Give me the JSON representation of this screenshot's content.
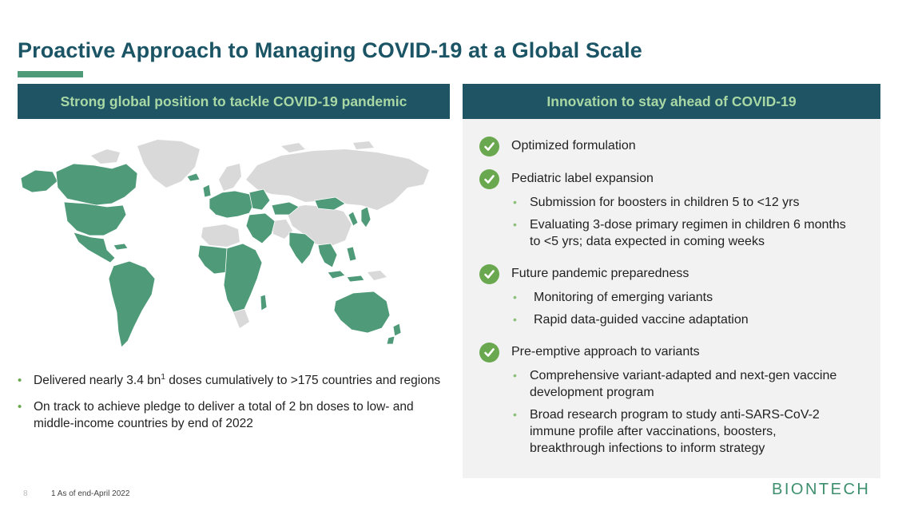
{
  "title": "Proactive Approach to Managing COVID-19 at a Global Scale",
  "left_header": "Strong global position to tackle COVID-19 pandemic",
  "right_header": "Innovation to stay ahead of COVID-19",
  "left_bullets": [
    {
      "pre": "Delivered nearly 3.4 bn",
      "sup": "1",
      "post": " doses cumulatively to >175 countries and regions"
    },
    {
      "text": "On track to achieve pledge to deliver a total of 2 bn doses to low- and middle-income countries by end of 2022"
    }
  ],
  "right_items": [
    {
      "title": "Optimized formulation",
      "subs": []
    },
    {
      "title": "Pediatric label expansion",
      "subs": [
        "Submission for boosters in children 5 to <12 yrs",
        "Evaluating 3-dose primary regimen in children 6 months to <5 yrs; data expected in coming weeks"
      ]
    },
    {
      "title": "Future pandemic preparedness",
      "subs": [
        "Monitoring of emerging variants",
        "Rapid data-guided vaccine adaptation"
      ]
    },
    {
      "title": "Pre-emptive approach to variants",
      "subs": [
        "Comprehensive variant-adapted and next-gen vaccine development program",
        "Broad research program to study anti-SARS-CoV-2 immune profile after vaccinations, boosters, breakthrough infections to inform strategy"
      ]
    }
  ],
  "footer": {
    "page_number": "8",
    "footnote": "1  As of end-April 2022"
  },
  "logo_text": "BIONTECH",
  "colors": {
    "title": "#1b5565",
    "header_bg": "#1e5463",
    "header_text": "#a9d8a5",
    "green": "#6aa84f",
    "map_delivered": "#4f9b79",
    "map_other": "#d9d9d9",
    "panel_bg": "#f2f2f2"
  },
  "icons": {
    "check": "check-circle-icon",
    "map": "world-map",
    "logo": "biontech-logo"
  }
}
